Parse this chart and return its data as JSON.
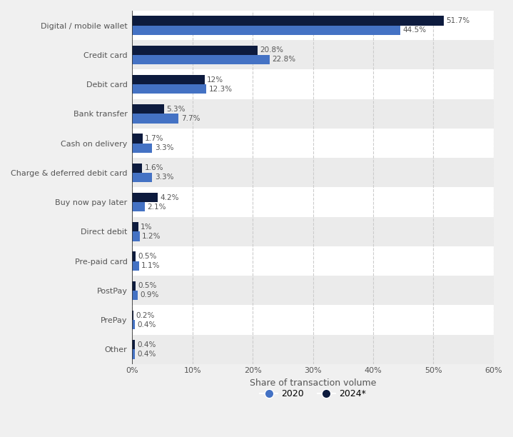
{
  "categories": [
    "Digital / mobile wallet",
    "Credit card",
    "Debit card",
    "Bank transfer",
    "Cash on delivery",
    "Charge & deferred debit card",
    "Buy now pay later",
    "Direct debit",
    "Pre-paid card",
    "PostPay",
    "PrePay",
    "Other"
  ],
  "values_2020": [
    44.5,
    22.8,
    12.3,
    7.7,
    3.3,
    3.3,
    2.1,
    1.2,
    1.1,
    0.9,
    0.4,
    0.4
  ],
  "values_2024": [
    51.7,
    20.8,
    12.0,
    5.3,
    1.7,
    1.6,
    4.2,
    1.0,
    0.5,
    0.5,
    0.2,
    0.4
  ],
  "color_2020": "#4472c4",
  "color_2024": "#0d1b3e",
  "xlabel": "Share of transaction volume",
  "legend_2020": "2020",
  "legend_2024": "2024*",
  "xlim": [
    0,
    60
  ],
  "xticks": [
    0,
    10,
    20,
    30,
    40,
    50,
    60
  ],
  "bg_white": "#ffffff",
  "bg_gray": "#ebebeb",
  "fig_background": "#f0f0f0",
  "bar_height": 0.32,
  "fontsize_labels": 8.0,
  "fontsize_values": 7.5,
  "fontsize_xlabel": 9,
  "fontsize_legend": 9,
  "fontsize_ticks": 8,
  "stripe_colors": [
    "#ffffff",
    "#ebebeb"
  ]
}
